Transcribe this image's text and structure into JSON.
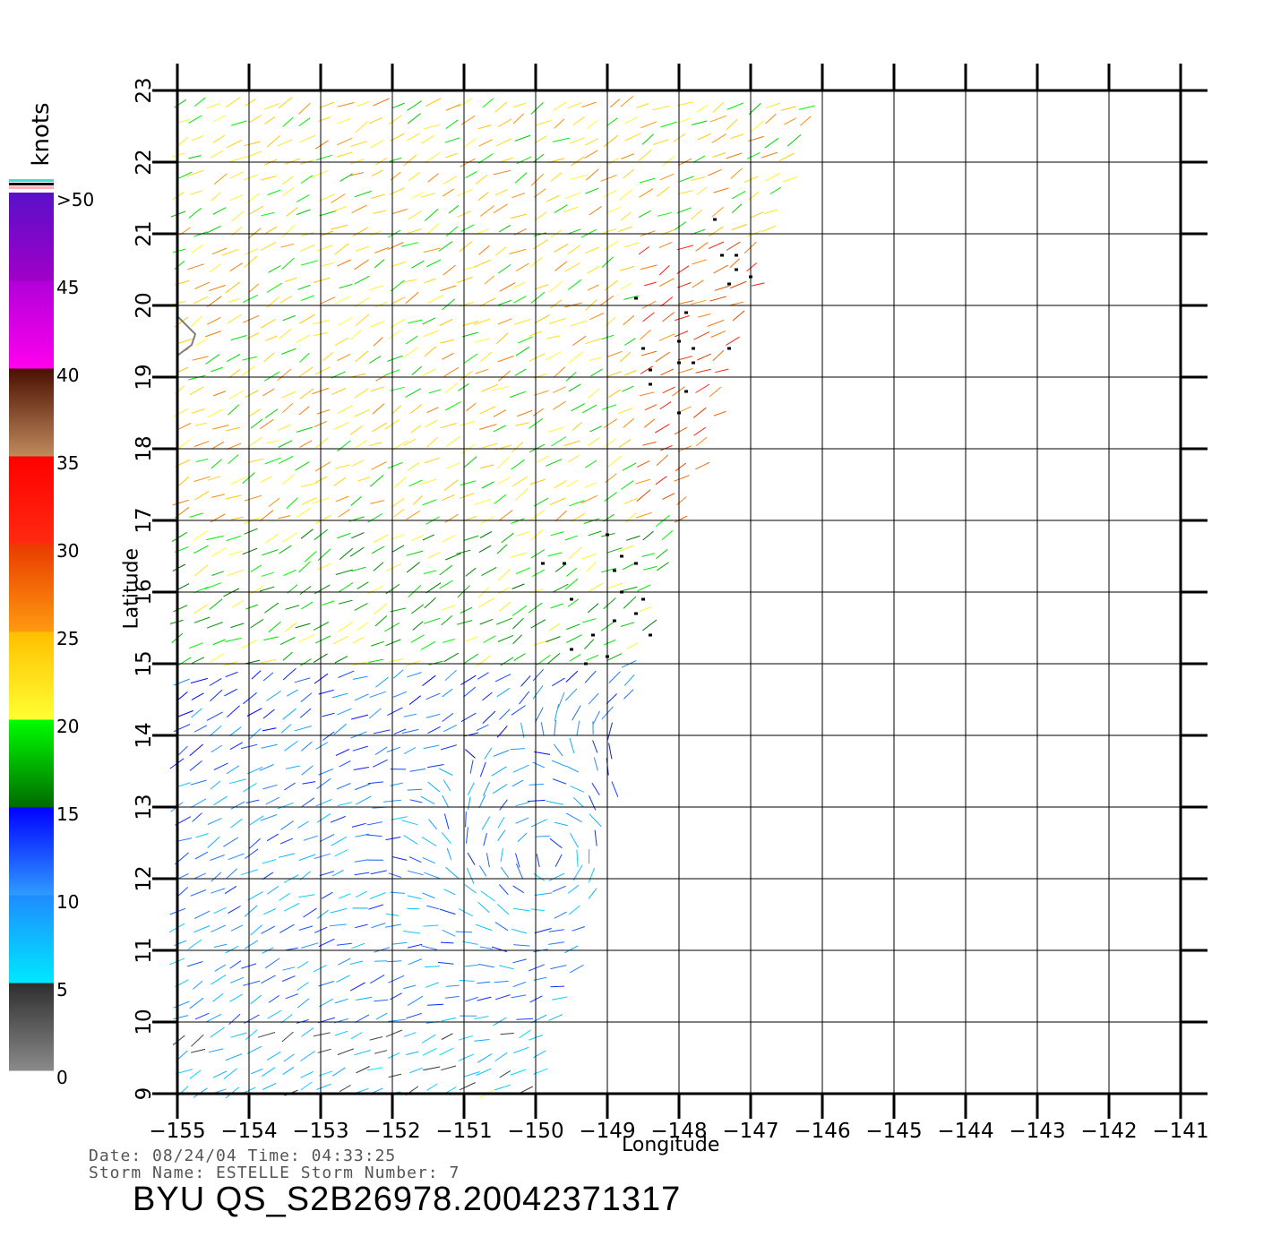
{
  "chart_data": {
    "type": "wind-vector-field",
    "xlabel": "Longitude",
    "ylabel": "Latitude",
    "xlim": [
      -155,
      -141
    ],
    "ylim": [
      9,
      23
    ],
    "x_ticks": [
      "−155",
      "−154",
      "−153",
      "−152",
      "−151",
      "−150",
      "−149",
      "−148",
      "−147",
      "−146",
      "−145",
      "−144",
      "−143",
      "−142",
      "−141"
    ],
    "y_ticks": [
      "9",
      "10",
      "11",
      "12",
      "13",
      "14",
      "15",
      "16",
      "17",
      "18",
      "19",
      "20",
      "21",
      "22",
      "23"
    ],
    "grid": true,
    "swath_edge": [
      {
        "lat": 23,
        "lon": -146.0
      },
      {
        "lat": 20,
        "lon": -147.0
      },
      {
        "lat": 17,
        "lon": -147.9
      },
      {
        "lat": 15,
        "lon": -148.6
      },
      {
        "lat": 13,
        "lon": -149.0
      },
      {
        "lat": 11,
        "lon": -149.3
      },
      {
        "lat": 9,
        "lon": -150.0
      }
    ],
    "colorbar": {
      "title": "knots",
      "labels": [
        {
          "value": 0,
          "text": "0"
        },
        {
          "value": 5,
          "text": "5"
        },
        {
          "value": 10,
          "text": "10"
        },
        {
          "value": 15,
          "text": "15"
        },
        {
          "value": 20,
          "text": "20"
        },
        {
          "value": 25,
          "text": "25"
        },
        {
          "value": 30,
          "text": "30"
        },
        {
          "value": 35,
          "text": "35"
        },
        {
          "value": 40,
          "text": "40"
        },
        {
          "value": 45,
          "text": "45"
        },
        {
          "value": 50,
          "text": ">50"
        }
      ],
      "bands": [
        {
          "from": 0,
          "to": 5,
          "top": "#2e2e2e",
          "bottom": "#8a8a8a"
        },
        {
          "from": 5,
          "to": 10,
          "top": "#1e8cff",
          "bottom": "#00e8ff"
        },
        {
          "from": 10,
          "to": 15,
          "top": "#0000ff",
          "bottom": "#2f9bff"
        },
        {
          "from": 15,
          "to": 20,
          "top": "#00ff00",
          "bottom": "#006a00"
        },
        {
          "from": 20,
          "to": 25,
          "top": "#ffbf00",
          "bottom": "#ffff33"
        },
        {
          "from": 25,
          "to": 30,
          "top": "#e83a00",
          "bottom": "#ff9a10"
        },
        {
          "from": 30,
          "to": 35,
          "top": "#ff0000",
          "bottom": "#ff2a10"
        },
        {
          "from": 35,
          "to": 40,
          "top": "#4a0f00",
          "bottom": "#c08a5c"
        },
        {
          "from": 40,
          "to": 45,
          "top": "#b000d8",
          "bottom": "#ff00ee"
        },
        {
          "from": 45,
          "to": 50,
          "top": "#5a10c8",
          "bottom": "#a000c8"
        }
      ],
      "top_stripes": [
        "#40e0d0",
        "#000000",
        "#ffb0c0"
      ]
    },
    "wind_speed_regions": [
      {
        "lat_min": 9,
        "lat_max": 10,
        "speed_knots": [
          3,
          9
        ],
        "dominant_color": "#00e0ff"
      },
      {
        "lat_min": 10,
        "lat_max": 13.5,
        "speed_knots": [
          6,
          14
        ],
        "dominant_color": "#1040ff"
      },
      {
        "lat_min": 13.5,
        "lat_max": 15,
        "speed_knots": [
          8,
          15
        ],
        "dominant_color": "#0030e0"
      },
      {
        "lat_min": 15,
        "lat_max": 17,
        "speed_knots": [
          15,
          22
        ],
        "dominant_color": "#20a020"
      },
      {
        "lat_min": 17,
        "lat_max": 23,
        "speed_knots": [
          18,
          27
        ],
        "dominant_color": "#e8d000"
      },
      {
        "lat_min": 17,
        "lat_max": 21,
        "lon_min": -148.5,
        "speed_knots": [
          25,
          32
        ],
        "dominant_color": "#e84010"
      }
    ],
    "rain_flags": [
      {
        "lon": -147.5,
        "lat": 21.2
      },
      {
        "lon": -147.4,
        "lat": 20.7
      },
      {
        "lon": -147.2,
        "lat": 20.7
      },
      {
        "lon": -147.2,
        "lat": 20.5
      },
      {
        "lon": -147.0,
        "lat": 20.4
      },
      {
        "lon": -147.3,
        "lat": 20.3
      },
      {
        "lon": -148.6,
        "lat": 20.1
      },
      {
        "lon": -147.9,
        "lat": 19.9
      },
      {
        "lon": -148.0,
        "lat": 19.5
      },
      {
        "lon": -148.5,
        "lat": 19.4
      },
      {
        "lon": -147.8,
        "lat": 19.4
      },
      {
        "lon": -147.3,
        "lat": 19.4
      },
      {
        "lon": -148.0,
        "lat": 19.2
      },
      {
        "lon": -147.8,
        "lat": 19.2
      },
      {
        "lon": -148.4,
        "lat": 19.1
      },
      {
        "lon": -147.9,
        "lat": 18.8
      },
      {
        "lon": -148.4,
        "lat": 18.9
      },
      {
        "lon": -148.0,
        "lat": 18.5
      },
      {
        "lon": -149.0,
        "lat": 16.8
      },
      {
        "lon": -148.8,
        "lat": 16.5
      },
      {
        "lon": -149.9,
        "lat": 16.4
      },
      {
        "lon": -149.6,
        "lat": 16.4
      },
      {
        "lon": -148.6,
        "lat": 16.4
      },
      {
        "lon": -148.9,
        "lat": 16.3
      },
      {
        "lon": -148.8,
        "lat": 16.0
      },
      {
        "lon": -148.5,
        "lat": 15.9
      },
      {
        "lon": -149.5,
        "lat": 15.9
      },
      {
        "lon": -148.6,
        "lat": 15.7
      },
      {
        "lon": -148.9,
        "lat": 15.6
      },
      {
        "lon": -148.4,
        "lat": 15.4
      },
      {
        "lon": -149.2,
        "lat": 15.4
      },
      {
        "lon": -149.5,
        "lat": 15.2
      },
      {
        "lon": -149.0,
        "lat": 15.1
      },
      {
        "lon": -149.3,
        "lat": 15.0
      }
    ],
    "coastline": [
      {
        "lon": -155.0,
        "lat": 19.85
      },
      {
        "lon": -154.85,
        "lat": 19.7
      },
      {
        "lon": -154.75,
        "lat": 19.6
      },
      {
        "lon": -154.8,
        "lat": 19.45
      },
      {
        "lon": -155.0,
        "lat": 19.3
      }
    ],
    "wind_field_model": {
      "vortex_center": {
        "lon": -149.8,
        "lat": 12.3
      },
      "ambient_flow_direction_deg": 28
    }
  },
  "footer": {
    "date_line": "Date: 08/24/04   Time: 04:33:25",
    "storm_line": "Storm Name: ESTELLE   Storm Number: 7",
    "product_id": "BYU QS_S2B26978.20042371317"
  }
}
